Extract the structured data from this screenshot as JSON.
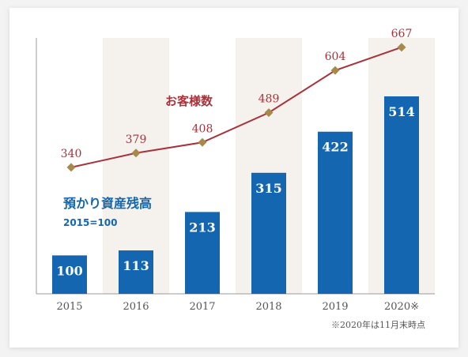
{
  "chart_data": {
    "type": "bar",
    "categories": [
      "2015",
      "2016",
      "2017",
      "2018",
      "2019",
      "2020※"
    ],
    "series": [
      {
        "name": "預かり資産残高",
        "kind": "bar",
        "note": "2015=100",
        "values": [
          100,
          113,
          213,
          315,
          422,
          514
        ],
        "color": "#1466b0"
      },
      {
        "name": "お客様数",
        "kind": "line",
        "values": [
          340,
          379,
          408,
          489,
          604,
          667
        ],
        "color": "#a8323a",
        "marker_color": "#a68a4b"
      }
    ],
    "bar_ylim": [
      0,
      600
    ],
    "line_ylim": [
      0,
      800
    ],
    "band_color": "#f5f2ee",
    "footnote": "※2020年は11月末時点",
    "grid": false
  }
}
